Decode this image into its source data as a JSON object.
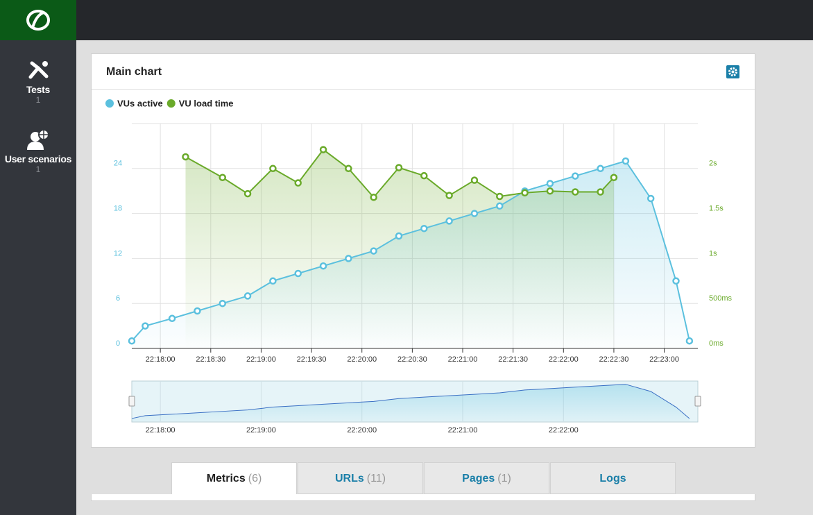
{
  "sidebar": {
    "items": [
      {
        "label": "Tests",
        "count": "1"
      },
      {
        "label": "User scenarios",
        "count": "1"
      }
    ]
  },
  "panel": {
    "title": "Main chart"
  },
  "chart_data": {
    "type": "line",
    "series": [
      {
        "name": "VUs active",
        "color": "#5bc0de",
        "x": [
          "22:17:43",
          "22:17:51",
          "22:18:07",
          "22:18:22",
          "22:18:37",
          "22:18:52",
          "22:19:07",
          "22:19:22",
          "22:19:37",
          "22:19:52",
          "22:20:07",
          "22:20:22",
          "22:20:37",
          "22:20:52",
          "22:21:07",
          "22:21:22",
          "22:21:37",
          "22:21:52",
          "22:22:07",
          "22:22:22",
          "22:22:37",
          "22:22:52",
          "22:23:07",
          "22:23:15"
        ],
        "values": [
          1,
          3,
          4,
          5,
          6,
          7,
          9,
          10,
          11,
          12,
          13,
          15,
          16,
          17,
          18,
          19,
          21,
          22,
          23,
          24,
          25,
          20,
          9,
          1
        ]
      },
      {
        "name": "VU load time",
        "color": "#6aaa2a",
        "axis": "y2",
        "x": [
          "22:18:15",
          "22:18:37",
          "22:18:52",
          "22:19:07",
          "22:19:22",
          "22:19:37",
          "22:19:52",
          "22:20:07",
          "22:20:22",
          "22:20:37",
          "22:20:52",
          "22:21:07",
          "22:21:22",
          "22:21:37",
          "22:21:52",
          "22:22:07",
          "22:22:22",
          "22:22:30"
        ],
        "values": [
          2130,
          1900,
          1720,
          2000,
          1840,
          2210,
          2000,
          1680,
          2010,
          1920,
          1700,
          1870,
          1690,
          1730,
          1750,
          1740,
          1740,
          1900
        ]
      }
    ],
    "xlim": [
      "22:17:43",
      "22:23:20"
    ],
    "xticks": [
      "22:18:00",
      "22:18:30",
      "22:19:00",
      "22:19:30",
      "22:20:00",
      "22:20:30",
      "22:21:00",
      "22:21:30",
      "22:22:00",
      "22:22:30",
      "22:23:00"
    ],
    "ylim": [
      0,
      30
    ],
    "yticks": [
      0,
      6,
      12,
      18,
      24
    ],
    "y2lim": [
      0,
      2500
    ],
    "y2ticks": [
      {
        "value": 0,
        "label": "0ms"
      },
      {
        "value": 500,
        "label": "500ms"
      },
      {
        "value": 1000,
        "label": "1s"
      },
      {
        "value": 1500,
        "label": "1.5s"
      },
      {
        "value": 2000,
        "label": "2s"
      }
    ],
    "grid": true
  },
  "navigator": {
    "xticks": [
      "22:18:00",
      "22:19:00",
      "22:20:00",
      "22:21:00",
      "22:22:00"
    ]
  },
  "tabs": [
    {
      "label": "Metrics",
      "count": "(6)"
    },
    {
      "label": "URLs",
      "count": "(11)"
    },
    {
      "label": "Pages",
      "count": "(1)"
    },
    {
      "label": "Logs"
    }
  ]
}
